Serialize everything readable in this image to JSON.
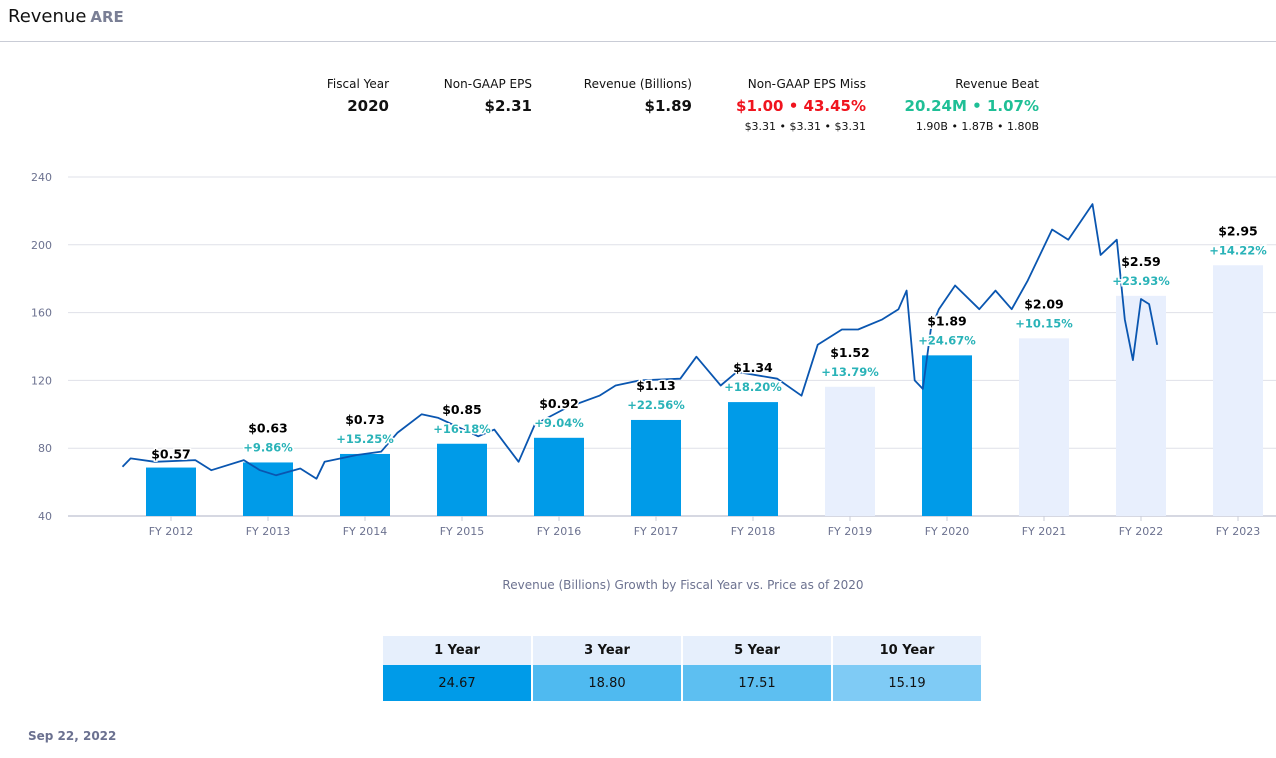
{
  "header": {
    "title": "Revenue",
    "ticker": "ARE"
  },
  "stats": [
    {
      "label": "Fiscal Year",
      "value": "2020"
    },
    {
      "label": "Non-GAAP EPS",
      "value": "$2.31"
    },
    {
      "label": "Revenue (Billions)",
      "value": "$1.89"
    },
    {
      "label": "Non-GAAP EPS Miss",
      "value": "$1.00 • 43.45%",
      "sub": "$3.31 • $3.31 • $3.31"
    },
    {
      "label": "Revenue Beat",
      "value": "20.24M • 1.07%",
      "sub": "1.90B • 1.87B • 1.80B"
    }
  ],
  "colors": {
    "bar_actual": "#009be8",
    "bar_estimate": "#e8effd",
    "price_line": "#0a56b0",
    "growth": "#2ab3b8",
    "miss": "#f0141e",
    "beat": "#1fbf96"
  },
  "chart_data": {
    "type": "bar+line",
    "caption": "Revenue (Billions) Growth by Fiscal Year vs. Price as of 2020",
    "y_ticks": [
      40,
      80,
      120,
      160,
      200,
      240
    ],
    "ylim": [
      40,
      240
    ],
    "grid": true,
    "categories": [
      "FY 2012",
      "FY 2013",
      "FY 2014",
      "FY 2015",
      "FY 2016",
      "FY 2017",
      "FY 2018",
      "FY 2019",
      "FY 2020",
      "FY 2021",
      "FY 2022",
      "FY 2023"
    ],
    "revenue": [
      0.57,
      0.63,
      0.73,
      0.85,
      0.92,
      1.13,
      1.34,
      1.52,
      1.89,
      2.09,
      2.59,
      2.95
    ],
    "value_labels": [
      "$0.57",
      "$0.63",
      "$0.73",
      "$0.85",
      "$0.92",
      "$1.13",
      "$1.34",
      "$1.52",
      "$1.89",
      "$2.09",
      "$2.59",
      "$2.95"
    ],
    "growth_labels": [
      "",
      "+9.86%",
      "+15.25%",
      "+16.18%",
      "+9.04%",
      "+22.56%",
      "+18.20%",
      "+13.79%",
      "+24.67%",
      "+10.15%",
      "+23.93%",
      "+14.22%"
    ],
    "highlighted": [
      true,
      true,
      true,
      true,
      true,
      true,
      true,
      false,
      true,
      false,
      false,
      false
    ],
    "price": [
      [
        "2011-07",
        69
      ],
      [
        "2011-08",
        74
      ],
      [
        "2011-11",
        72
      ],
      [
        "2012-04",
        73
      ],
      [
        "2012-06",
        67
      ],
      [
        "2012-10",
        73
      ],
      [
        "2012-12",
        67
      ],
      [
        "2013-02",
        64
      ],
      [
        "2013-05",
        68
      ],
      [
        "2013-07",
        62
      ],
      [
        "2013-08",
        72
      ],
      [
        "2013-12",
        76
      ],
      [
        "2014-03",
        78
      ],
      [
        "2014-05",
        89
      ],
      [
        "2014-08",
        100
      ],
      [
        "2014-10",
        98
      ],
      [
        "2015-03",
        87
      ],
      [
        "2015-05",
        91
      ],
      [
        "2015-08",
        72
      ],
      [
        "2015-10",
        94
      ],
      [
        "2016-02",
        104
      ],
      [
        "2016-06",
        111
      ],
      [
        "2016-08",
        117
      ],
      [
        "2016-11",
        120
      ],
      [
        "2017-04",
        121
      ],
      [
        "2017-06",
        134
      ],
      [
        "2017-09",
        117
      ],
      [
        "2017-11",
        125
      ],
      [
        "2018-04",
        121
      ],
      [
        "2018-07",
        111
      ],
      [
        "2018-09",
        141
      ],
      [
        "2018-12",
        150
      ],
      [
        "2019-02",
        150
      ],
      [
        "2019-05",
        156
      ],
      [
        "2019-07",
        162
      ],
      [
        "2019-08",
        173
      ],
      [
        "2019-09",
        120
      ],
      [
        "2019-10",
        115
      ],
      [
        "2019-11",
        150
      ],
      [
        "2019-12",
        162
      ],
      [
        "2020-02",
        176
      ],
      [
        "2020-05",
        162
      ],
      [
        "2020-07",
        173
      ],
      [
        "2020-09",
        162
      ],
      [
        "2020-11",
        179
      ],
      [
        "2021-02",
        209
      ],
      [
        "2021-04",
        203
      ],
      [
        "2021-07",
        224
      ],
      [
        "2021-08",
        194
      ],
      [
        "2021-10",
        203
      ],
      [
        "2021-11",
        156
      ],
      [
        "2021-12",
        132
      ],
      [
        "2022-01",
        168
      ],
      [
        "2022-02",
        165
      ],
      [
        "2022-03",
        141
      ]
    ]
  },
  "table": {
    "headers": [
      "1 Year",
      "3 Year",
      "5 Year",
      "10 Year"
    ],
    "values": [
      "24.67",
      "18.80",
      "17.51",
      "15.19"
    ],
    "cell_colors": [
      "#009be8",
      "#4fbaf0",
      "#5dbff1",
      "#7fcbf5"
    ]
  },
  "footer": {
    "date": "Sep 22, 2022"
  }
}
